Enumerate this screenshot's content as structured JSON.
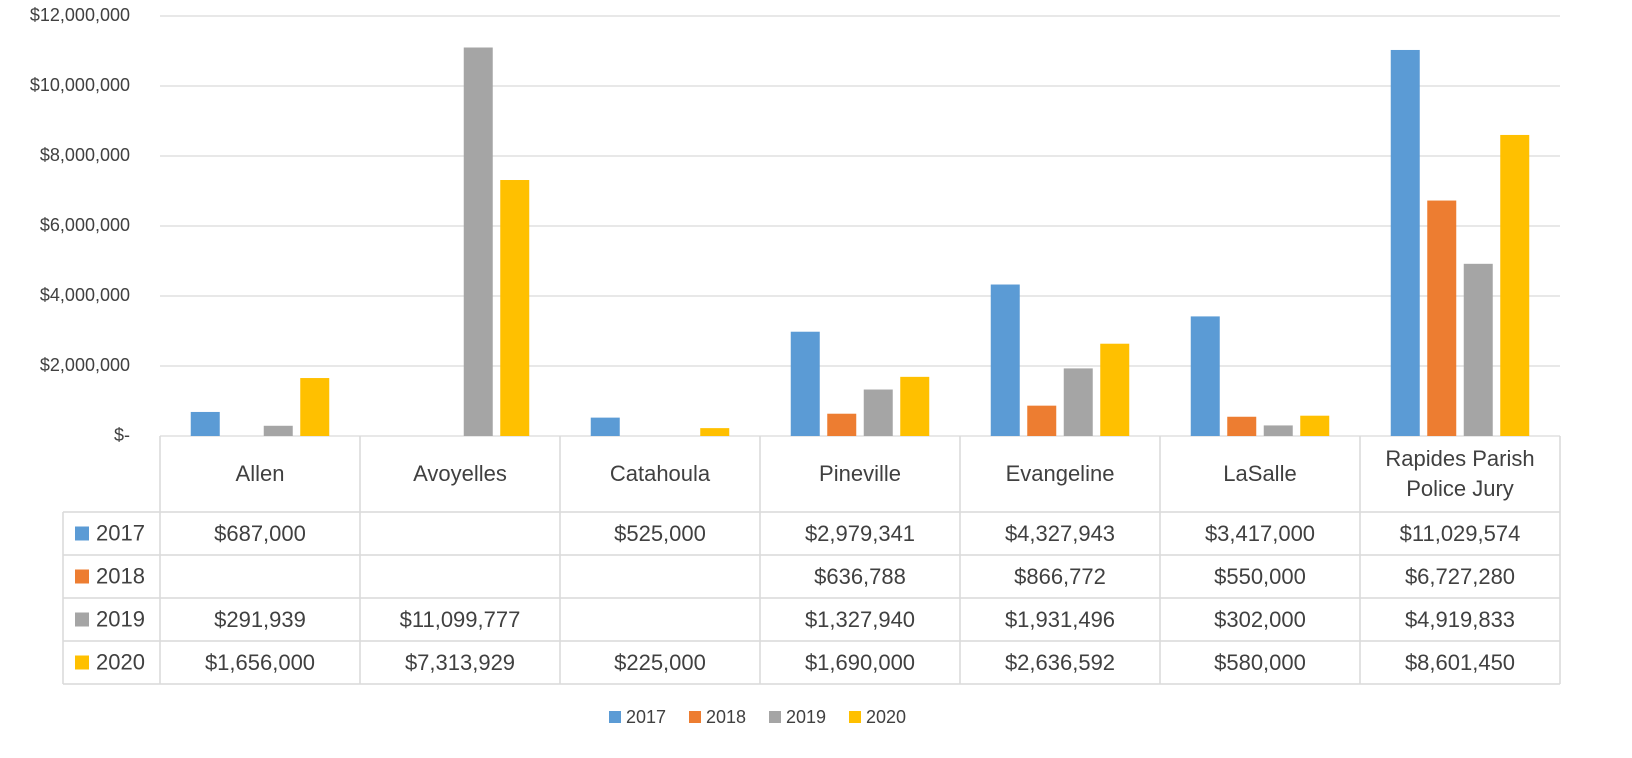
{
  "chart_data": {
    "type": "bar",
    "categories": [
      "Allen",
      "Avoyelles",
      "Catahoula",
      "Pineville",
      "Evangeline",
      "LaSalle",
      "Rapides Parish Police Jury"
    ],
    "series": [
      {
        "name": "2017",
        "color": "#5b9bd5",
        "values": [
          687000,
          null,
          525000,
          2979341,
          4327943,
          3417000,
          11029574
        ],
        "value_labels": [
          "$687,000",
          null,
          "$525,000",
          "$2,979,341",
          "$4,327,943",
          "$3,417,000",
          "$11,029,574"
        ]
      },
      {
        "name": "2018",
        "color": "#ed7d31",
        "values": [
          null,
          null,
          null,
          636788,
          866772,
          550000,
          6727280
        ],
        "value_labels": [
          null,
          null,
          null,
          "$636,788",
          "$866,772",
          "$550,000",
          "$6,727,280"
        ]
      },
      {
        "name": "2019",
        "color": "#a5a5a5",
        "values": [
          291939,
          11099777,
          null,
          1327940,
          1931496,
          302000,
          4919833
        ],
        "value_labels": [
          "$291,939",
          "$11,099,777",
          null,
          "$1,327,940",
          "$1,931,496",
          "$302,000",
          "$4,919,833"
        ]
      },
      {
        "name": "2020",
        "color": "#ffc000",
        "values": [
          1656000,
          7313929,
          225000,
          1690000,
          2636592,
          580000,
          8601450
        ],
        "value_labels": [
          "$1,656,000",
          "$7,313,929",
          "$225,000",
          "$1,690,000",
          "$2,636,592",
          "$580,000",
          "$8,601,450"
        ]
      }
    ],
    "ylim": [
      0,
      12000000
    ],
    "yticks": [
      {
        "value": 0,
        "label": "$-"
      },
      {
        "value": 2000000,
        "label": "$2,000,000"
      },
      {
        "value": 4000000,
        "label": "$4,000,000"
      },
      {
        "value": 6000000,
        "label": "$6,000,000"
      },
      {
        "value": 8000000,
        "label": "$8,000,000"
      },
      {
        "value": 10000000,
        "label": "$10,000,000"
      },
      {
        "value": 12000000,
        "label": "$12,000,000"
      }
    ],
    "grid": true,
    "data_table": true,
    "legend": "bottom"
  }
}
